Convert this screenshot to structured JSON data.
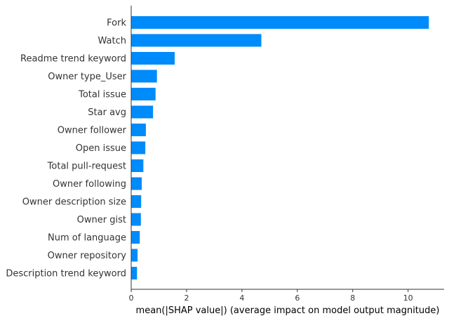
{
  "chart_data": {
    "type": "bar",
    "orientation": "horizontal",
    "categories": [
      "Fork",
      "Watch",
      "Readme trend keyword",
      "Owner type_User",
      "Total issue",
      "Star avg",
      "Owner follower",
      "Open issue",
      "Total pull-request",
      "Owner following",
      "Owner description size",
      "Owner gist",
      "Num of language",
      "Owner repository",
      "Description trend keyword"
    ],
    "values": [
      10.75,
      4.7,
      1.57,
      0.93,
      0.88,
      0.79,
      0.53,
      0.51,
      0.44,
      0.38,
      0.36,
      0.35,
      0.31,
      0.23,
      0.21
    ],
    "xlabel": "mean(|SHAP value|) (average impact on model output magnitude)",
    "ylabel": "",
    "xlim": [
      0,
      11.3
    ],
    "xticks": [
      0,
      2,
      4,
      6,
      8,
      10
    ],
    "grid": false,
    "bar_color": "#008bfb",
    "axis_color": "#333333"
  }
}
